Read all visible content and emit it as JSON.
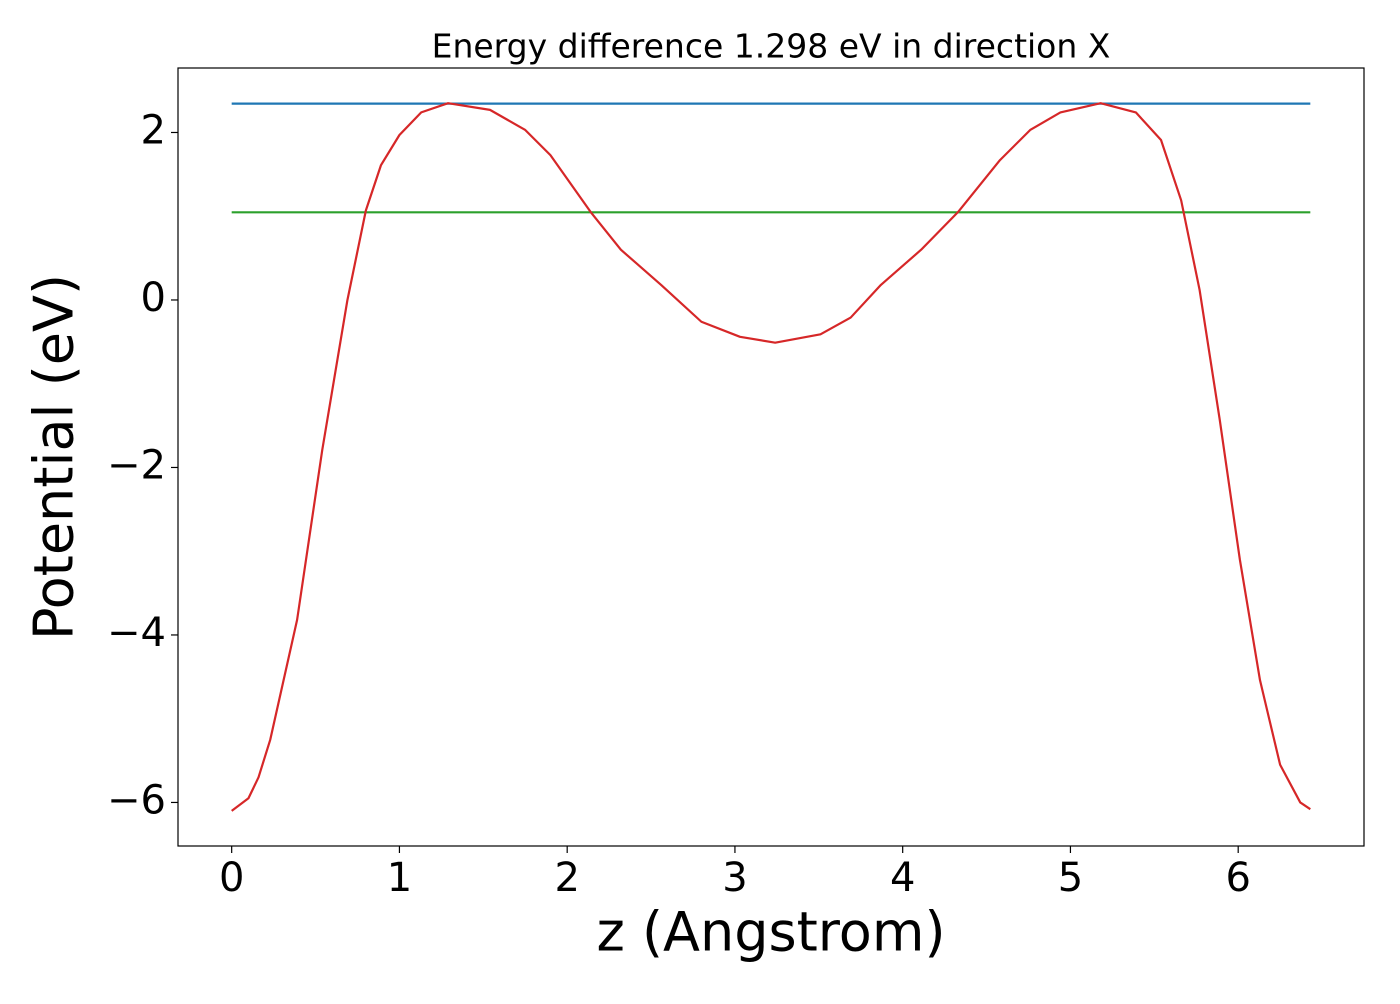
{
  "chart_data": {
    "type": "line",
    "title": "Energy difference 1.298 eV in direction X",
    "xlabel": "z (Angstrom)",
    "ylabel": "Potential (eV)",
    "xlim": [
      -0.32,
      6.75
    ],
    "ylim": [
      -6.52,
      2.77
    ],
    "xticks": [
      0,
      1,
      2,
      3,
      4,
      5,
      6
    ],
    "yticks": [
      {
        "value": -6,
        "label": "−6"
      },
      {
        "value": -4,
        "label": "−4"
      },
      {
        "value": -2,
        "label": "−2"
      },
      0,
      2
    ],
    "series": [
      {
        "color": "#d62728",
        "x": [
          0,
          0.1,
          0.16,
          0.23,
          0.39,
          0.54,
          0.69,
          0.8,
          0.89,
          1.0,
          1.13,
          1.29,
          1.54,
          1.75,
          1.9,
          2.14,
          2.32,
          2.56,
          2.8,
          3.03,
          3.24,
          3.51,
          3.69,
          3.87,
          4.11,
          4.33,
          4.58,
          4.76,
          4.94,
          5.18,
          5.39,
          5.54,
          5.66,
          5.77,
          5.89,
          6.01,
          6.13,
          6.25,
          6.37,
          6.43
        ],
        "values": [
          -6.1,
          -5.95,
          -5.7,
          -5.25,
          -3.82,
          -1.79,
          0,
          1.07,
          1.61,
          1.97,
          2.24,
          2.35,
          2.27,
          2.03,
          1.73,
          1.05,
          0.6,
          0.18,
          -0.26,
          -0.44,
          -0.51,
          -0.41,
          -0.21,
          0.18,
          0.6,
          1.05,
          1.67,
          2.03,
          2.24,
          2.35,
          2.24,
          1.91,
          1.19,
          0.12,
          -1.43,
          -3.1,
          -4.54,
          -5.55,
          -6.0,
          -6.08
        ]
      },
      {
        "color": "#1f77b4",
        "x": [
          0,
          6.43
        ],
        "values": [
          2.345,
          2.345
        ]
      },
      {
        "color": "#2ca02c",
        "x": [
          0,
          6.43
        ],
        "values": [
          1.047,
          1.047
        ]
      }
    ]
  }
}
